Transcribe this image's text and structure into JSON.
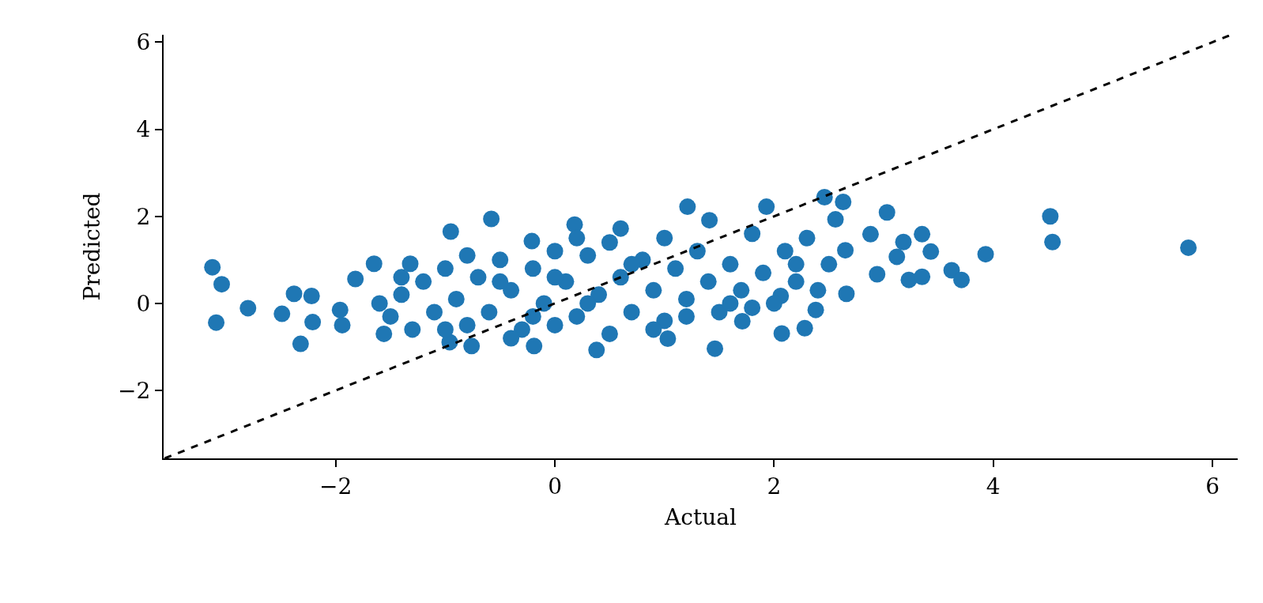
{
  "chart_data": {
    "type": "scatter",
    "xlabel": "Actual",
    "ylabel": "Predicted",
    "xlim": [
      -3.57,
      6.23
    ],
    "ylim": [
      -3.56,
      6.17
    ],
    "xticks": [
      {
        "value": -2,
        "label": "−2"
      },
      0,
      2,
      4,
      6
    ],
    "yticks": [
      {
        "value": -2,
        "label": "−2"
      },
      0,
      2,
      4,
      6
    ],
    "grid": false,
    "legend": false,
    "marker": "circle",
    "series": [
      {
        "color": "#1f77b4",
        "x": [
          -3.125,
          -3.04,
          -3.09,
          -2.8,
          -2.49,
          -2.38,
          -2.22,
          -2.32,
          -2.21,
          -1.96,
          -1.94,
          -1.82,
          -1.65,
          -1.56,
          -1.32,
          -0.95,
          -0.58,
          -0.96,
          -0.76,
          -0.21,
          -0.19,
          0.18,
          0.38,
          0.6,
          1.03,
          1.21,
          1.41,
          1.46,
          1.93,
          1.71,
          2.06,
          2.07,
          2.28,
          2.38,
          2.46,
          2.63,
          2.56,
          2.65,
          2.66,
          2.88,
          2.94,
          3.03,
          3.12,
          3.18,
          3.23,
          3.35,
          3.35,
          3.43,
          3.62,
          3.71,
          3.93,
          4.52,
          4.54,
          5.78,
          -1.5,
          -1.4,
          -1.3,
          -1.2,
          -1.1,
          -1.0,
          -0.9,
          -0.8,
          -0.7,
          -0.6,
          -0.5,
          -0.4,
          -0.3,
          -0.2,
          -0.1,
          0,
          0,
          0.1,
          0.2,
          0.3,
          0.4,
          0.5,
          0.5,
          0.6,
          0.7,
          0.8,
          0.9,
          1.0,
          1.0,
          1.1,
          1.2,
          1.3,
          1.4,
          1.5,
          1.6,
          1.7,
          1.8,
          1.9,
          2.0,
          2.1,
          2.2,
          2.3,
          2.4,
          2.5,
          -0.8,
          -1.4,
          0.2,
          -0.4,
          1.2,
          0.7,
          -1.6,
          -1.0,
          -0.5,
          0.3,
          0.9,
          1.6,
          2.2,
          0.0,
          -0.2,
          1.8
        ],
        "values": [
          0.83,
          0.44,
          -0.44,
          -0.11,
          -0.24,
          0.22,
          0.17,
          -0.93,
          -0.43,
          -0.15,
          -0.5,
          0.56,
          0.91,
          -0.7,
          0.91,
          1.65,
          1.94,
          -0.89,
          -0.98,
          1.43,
          -0.98,
          1.81,
          -1.07,
          1.72,
          -0.81,
          2.22,
          1.91,
          -1.04,
          2.22,
          -0.41,
          0.17,
          -0.69,
          -0.57,
          -0.15,
          2.44,
          2.33,
          1.93,
          1.22,
          0.22,
          1.59,
          0.67,
          2.09,
          1.07,
          1.41,
          0.54,
          1.59,
          0.61,
          1.19,
          0.76,
          0.54,
          1.13,
          2.0,
          1.41,
          1.28,
          -0.3,
          0.2,
          -0.6,
          0.5,
          -0.2,
          0.8,
          0.1,
          -0.5,
          0.6,
          -0.2,
          1.0,
          0.3,
          -0.6,
          0.8,
          0.0,
          1.2,
          -0.5,
          0.5,
          -0.3,
          1.1,
          0.2,
          -0.7,
          1.4,
          0.6,
          -0.2,
          1.0,
          0.3,
          1.5,
          -0.4,
          0.8,
          0.1,
          1.2,
          0.5,
          -0.2,
          0.9,
          0.3,
          1.6,
          0.7,
          0.0,
          1.2,
          0.5,
          1.5,
          0.3,
          0.9,
          1.1,
          0.6,
          1.5,
          -0.8,
          -0.3,
          0.9,
          0.0,
          -0.6,
          0.5,
          0.0,
          -0.6,
          0.0,
          0.9,
          0.6,
          -0.3,
          -0.1
        ]
      },
      {
        "type": "line",
        "color": "#000000",
        "line_style": "dashed",
        "marker": "none",
        "x": [
          -3.56,
          6.17
        ],
        "values": [
          -3.56,
          6.17
        ]
      }
    ]
  }
}
